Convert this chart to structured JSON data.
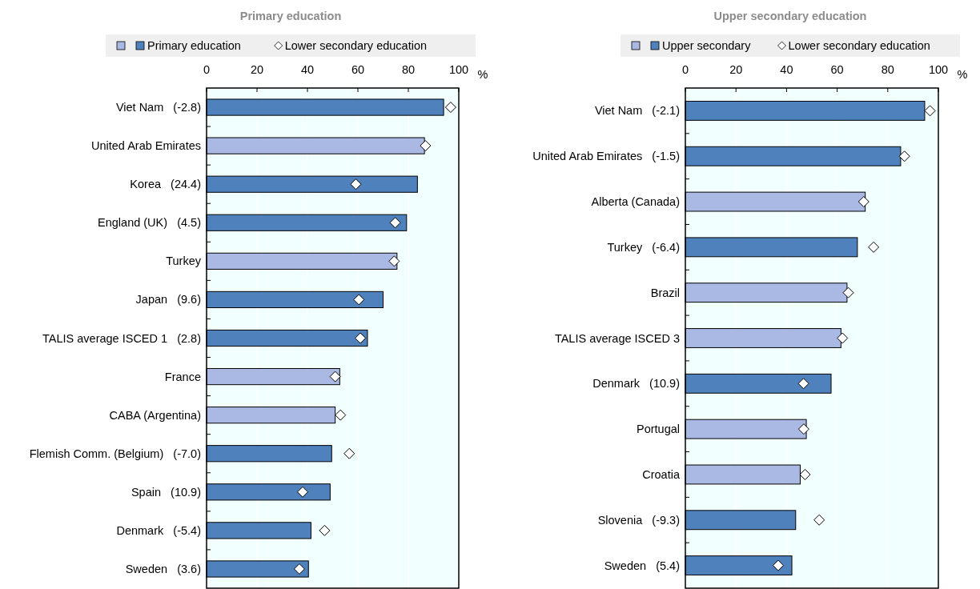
{
  "chart_data": [
    {
      "type": "bar",
      "title": "Primary education",
      "orientation": "horizontal",
      "xlabel": "%",
      "xlim": [
        0,
        100
      ],
      "xticks": [
        0,
        20,
        40,
        60,
        80,
        100
      ],
      "grid": "x",
      "legend": "top",
      "categories": [
        "Viet Nam   (-2.8)",
        "United Arab Emirates",
        "Korea   (24.4)",
        "England (UK)   (4.5)",
        "Turkey",
        "Japan   (9.6)",
        "TALIS average ISCED 1   (2.8)",
        "France",
        "CABA (Argentina)",
        "Flemish Comm. (Belgium)   (-7.0)",
        "Spain   (10.9)",
        "Denmark   (-5.4)",
        "Sweden   (3.6)"
      ],
      "series": [
        {
          "name": "Primary education",
          "colors": [
            "#4f81bd",
            "#a9b9e3",
            "#4f81bd",
            "#4f81bd",
            "#a9b9e3",
            "#4f81bd",
            "#4f81bd",
            "#a9b9e3",
            "#a9b9e3",
            "#4f81bd",
            "#4f81bd",
            "#4f81bd",
            "#4f81bd"
          ],
          "values": [
            94.0,
            86.4,
            83.6,
            79.3,
            75.5,
            70.0,
            63.8,
            52.8,
            51.0,
            49.6,
            49.0,
            41.4,
            40.4
          ]
        },
        {
          "name": "Lower secondary education",
          "type": "scatter",
          "marker": "diamond",
          "color": "#ffffff",
          "values": [
            96.8,
            86.8,
            59.2,
            74.8,
            74.4,
            60.4,
            61.0,
            51.0,
            53.1,
            56.6,
            38.1,
            46.8,
            36.8
          ]
        }
      ]
    },
    {
      "type": "bar",
      "title": "Upper secondary education",
      "orientation": "horizontal",
      "xlabel": "%",
      "xlim": [
        0,
        100
      ],
      "xticks": [
        0,
        20,
        40,
        60,
        80,
        100
      ],
      "grid": "x",
      "legend": "top",
      "categories": [
        "Viet Nam   (-2.1)",
        "United Arab Emirates   (-1.5)",
        "Alberta (Canada)",
        "Turkey   (-6.4)",
        "Brazil",
        "TALIS average ISCED 3",
        "Denmark   (10.9)",
        "Portugal",
        "Croatia",
        "Slovenia   (-9.3)",
        "Sweden   (5.4)"
      ],
      "series": [
        {
          "name": "Upper secondary",
          "colors": [
            "#4f81bd",
            "#4f81bd",
            "#a9b9e3",
            "#4f81bd",
            "#a9b9e3",
            "#a9b9e3",
            "#4f81bd",
            "#a9b9e3",
            "#a9b9e3",
            "#4f81bd",
            "#4f81bd"
          ],
          "values": [
            94.6,
            85.1,
            71.1,
            68.0,
            63.9,
            61.5,
            57.6,
            47.8,
            45.4,
            43.6,
            42.1
          ]
        },
        {
          "name": "Lower secondary education",
          "type": "scatter",
          "marker": "diamond",
          "color": "#ffffff",
          "values": [
            96.7,
            86.6,
            70.5,
            74.4,
            64.4,
            62.1,
            46.7,
            46.8,
            47.3,
            52.9,
            36.7
          ]
        }
      ]
    }
  ]
}
